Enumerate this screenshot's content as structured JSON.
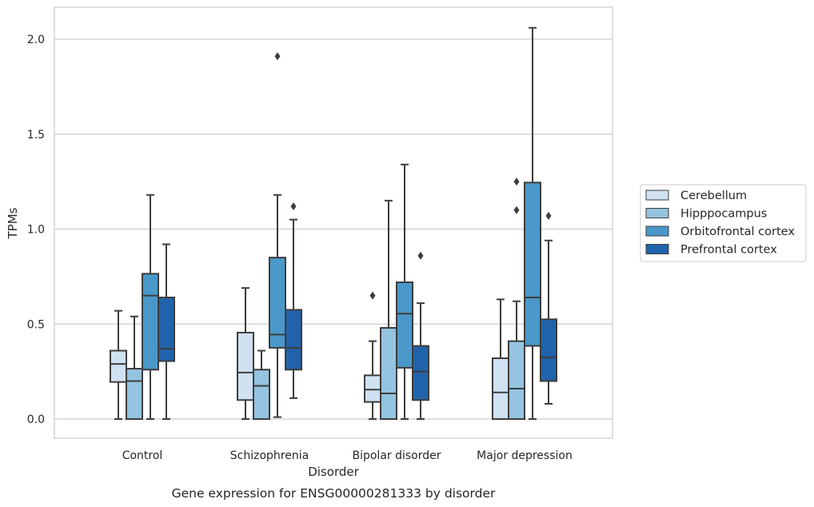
{
  "chart_data": {
    "type": "box",
    "caption": "Gene expression for ENSG00000281333 by disorder",
    "xlabel": "Disorder",
    "ylabel": "TPMs",
    "ylim": [
      -0.1,
      2.17
    ],
    "yticks": [
      0.0,
      0.5,
      1.0,
      1.5,
      2.0
    ],
    "ytick_labels": [
      "0.0",
      "0.5",
      "1.0",
      "1.5",
      "2.0"
    ],
    "grid": "horizontal",
    "legend_position": "right",
    "categories": [
      "Control",
      "Schizophrenia",
      "Bipolar disorder",
      "Major depression"
    ],
    "series": [
      {
        "name": "Cerebellum",
        "color": "#d0e1f2",
        "boxes": [
          {
            "whisker_low": 0.0,
            "q1": 0.195,
            "median": 0.29,
            "q3": 0.36,
            "whisker_high": 0.57,
            "outliers": []
          },
          {
            "whisker_low": 0.0,
            "q1": 0.1,
            "median": 0.245,
            "q3": 0.455,
            "whisker_high": 0.69,
            "outliers": []
          },
          {
            "whisker_low": 0.0,
            "q1": 0.09,
            "median": 0.155,
            "q3": 0.23,
            "whisker_high": 0.41,
            "outliers": [
              0.65
            ]
          },
          {
            "whisker_low": 0.0,
            "q1": 0.0,
            "median": 0.14,
            "q3": 0.32,
            "whisker_high": 0.63,
            "outliers": []
          }
        ]
      },
      {
        "name": "Hipppocampus",
        "color": "#94c4df",
        "boxes": [
          {
            "whisker_low": 0.0,
            "q1": 0.0,
            "median": 0.2,
            "q3": 0.265,
            "whisker_high": 0.54,
            "outliers": []
          },
          {
            "whisker_low": 0.0,
            "q1": 0.0,
            "median": 0.175,
            "q3": 0.26,
            "whisker_high": 0.36,
            "outliers": []
          },
          {
            "whisker_low": 0.0,
            "q1": 0.0,
            "median": 0.135,
            "q3": 0.48,
            "whisker_high": 1.15,
            "outliers": []
          },
          {
            "whisker_low": 0.0,
            "q1": 0.0,
            "median": 0.16,
            "q3": 0.41,
            "whisker_high": 0.62,
            "outliers": [
              1.1,
              1.25
            ]
          }
        ]
      },
      {
        "name": "Orbitofrontal cortex",
        "color": "#4a98c9",
        "boxes": [
          {
            "whisker_low": 0.0,
            "q1": 0.26,
            "median": 0.65,
            "q3": 0.765,
            "whisker_high": 1.18,
            "outliers": []
          },
          {
            "whisker_low": 0.01,
            "q1": 0.375,
            "median": 0.445,
            "q3": 0.85,
            "whisker_high": 1.18,
            "outliers": [
              1.91
            ]
          },
          {
            "whisker_low": 0.0,
            "q1": 0.27,
            "median": 0.555,
            "q3": 0.72,
            "whisker_high": 1.34,
            "outliers": []
          },
          {
            "whisker_low": 0.0,
            "q1": 0.385,
            "median": 0.64,
            "q3": 1.245,
            "whisker_high": 2.06,
            "outliers": []
          }
        ]
      },
      {
        "name": "Prefrontal cortex",
        "color": "#2163aa",
        "boxes": [
          {
            "whisker_low": 0.0,
            "q1": 0.305,
            "median": 0.37,
            "q3": 0.64,
            "whisker_high": 0.92,
            "outliers": []
          },
          {
            "whisker_low": 0.11,
            "q1": 0.26,
            "median": 0.375,
            "q3": 0.575,
            "whisker_high": 1.05,
            "outliers": [
              1.12
            ]
          },
          {
            "whisker_low": 0.0,
            "q1": 0.1,
            "median": 0.25,
            "q3": 0.385,
            "whisker_high": 0.61,
            "outliers": [
              0.86
            ]
          },
          {
            "whisker_low": 0.08,
            "q1": 0.2,
            "median": 0.325,
            "q3": 0.525,
            "whisker_high": 0.94,
            "outliers": [
              1.07
            ]
          }
        ]
      }
    ]
  }
}
